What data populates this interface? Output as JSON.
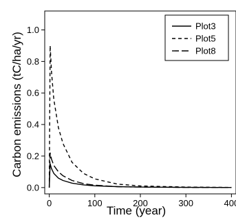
{
  "chart_data": {
    "type": "line",
    "title": "",
    "xlabel": "Time (year)",
    "ylabel": "Carbon emissions (tC/ha/yr)",
    "xlim": [
      -10,
      410
    ],
    "ylim": [
      -0.04,
      1.12
    ],
    "xticks": [
      0,
      100,
      200,
      300,
      400
    ],
    "xtick_labels": [
      "0",
      "100",
      "200",
      "300",
      "400"
    ],
    "yticks": [
      0.0,
      0.2,
      0.4,
      0.6,
      0.8,
      1.0
    ],
    "ytick_labels": [
      "0.0",
      "0.2",
      "0.4",
      "0.6",
      "0.8",
      "1.0"
    ],
    "grid": false,
    "legend_position": "top-right",
    "series": [
      {
        "name": "Plot3",
        "line_style": "solid",
        "x": [
          0,
          2,
          5,
          10,
          20,
          30,
          50,
          75,
          100,
          150,
          200,
          300,
          400
        ],
        "y": [
          0.0,
          0.15,
          0.12,
          0.09,
          0.06,
          0.045,
          0.028,
          0.017,
          0.011,
          0.006,
          0.003,
          0.001,
          0.0005
        ]
      },
      {
        "name": "Plot5",
        "line_style": "dashed",
        "x": [
          0,
          2,
          5,
          10,
          20,
          30,
          50,
          75,
          100,
          150,
          200,
          300,
          400
        ],
        "y": [
          0.0,
          0.9,
          0.73,
          0.56,
          0.38,
          0.28,
          0.16,
          0.09,
          0.055,
          0.022,
          0.01,
          0.003,
          0.001
        ]
      },
      {
        "name": "Plot8",
        "line_style": "longdash",
        "x": [
          0,
          2,
          5,
          10,
          20,
          30,
          50,
          75,
          100,
          150,
          200,
          300,
          400
        ],
        "y": [
          0.0,
          0.22,
          0.18,
          0.14,
          0.1,
          0.075,
          0.045,
          0.025,
          0.015,
          0.006,
          0.003,
          0.001,
          0.0005
        ]
      }
    ]
  }
}
